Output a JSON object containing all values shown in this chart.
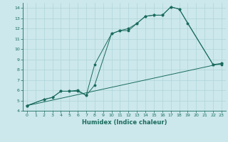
{
  "xlabel": "Humidex (Indice chaleur)",
  "ylabel": "",
  "background_color": "#cce8ec",
  "line_color": "#1a6b5e",
  "xlim": [
    -0.5,
    23.5
  ],
  "ylim": [
    4,
    14.5
  ],
  "xticks": [
    0,
    1,
    2,
    3,
    4,
    5,
    6,
    7,
    8,
    9,
    10,
    11,
    12,
    13,
    14,
    15,
    16,
    17,
    18,
    19,
    20,
    21,
    22,
    23
  ],
  "yticks": [
    4,
    5,
    6,
    7,
    8,
    9,
    10,
    11,
    12,
    13,
    14
  ],
  "series": [
    {
      "x": [
        0,
        2,
        3,
        4,
        5,
        6,
        7,
        8,
        10,
        11,
        12,
        13,
        14,
        15,
        16,
        17,
        18,
        22,
        23
      ],
      "y": [
        4.5,
        5.1,
        5.3,
        5.9,
        5.9,
        6.0,
        5.5,
        6.5,
        11.5,
        11.8,
        12.0,
        12.5,
        13.2,
        13.3,
        13.3,
        14.1,
        13.9,
        8.5,
        8.6
      ]
    },
    {
      "x": [
        0,
        2,
        3,
        4,
        5,
        6,
        7,
        8,
        10,
        11,
        12,
        13,
        14,
        15,
        16,
        17,
        18,
        19,
        22,
        23
      ],
      "y": [
        4.5,
        5.1,
        5.3,
        5.9,
        5.9,
        5.9,
        5.5,
        8.5,
        11.5,
        11.8,
        11.8,
        12.5,
        13.2,
        13.3,
        13.3,
        14.1,
        13.9,
        12.5,
        8.5,
        8.5
      ]
    },
    {
      "x": [
        0,
        23
      ],
      "y": [
        4.5,
        8.6
      ]
    }
  ]
}
